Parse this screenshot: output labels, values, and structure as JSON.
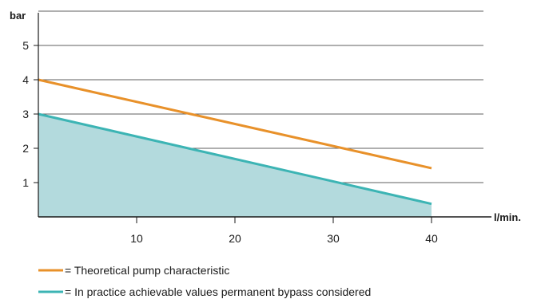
{
  "chart_data": {
    "type": "line",
    "ylabel": "bar",
    "xlabel": "l/min.",
    "xlim": [
      0,
      50
    ],
    "ylim": [
      0,
      6
    ],
    "x_ticks": [
      10,
      20,
      30,
      40
    ],
    "y_ticks": [
      1,
      2,
      3,
      4,
      5
    ],
    "grid": "horizontal",
    "series": [
      {
        "color": "#e8912a",
        "x": [
          0,
          40
        ],
        "y": [
          4.0,
          1.42
        ],
        "fill": false
      },
      {
        "color": "#3cb4b4",
        "x": [
          0,
          40
        ],
        "y": [
          3.0,
          0.38
        ],
        "fill": true,
        "fill_color": "#b3dadd"
      }
    ],
    "legend": [
      {
        "color": "#e8912a",
        "text": "= Theoretical pump characteristic"
      },
      {
        "color": "#3cb4b4",
        "text": "= In practice achievable values permanent bypass considered"
      }
    ],
    "legend_placement": "bottom"
  }
}
